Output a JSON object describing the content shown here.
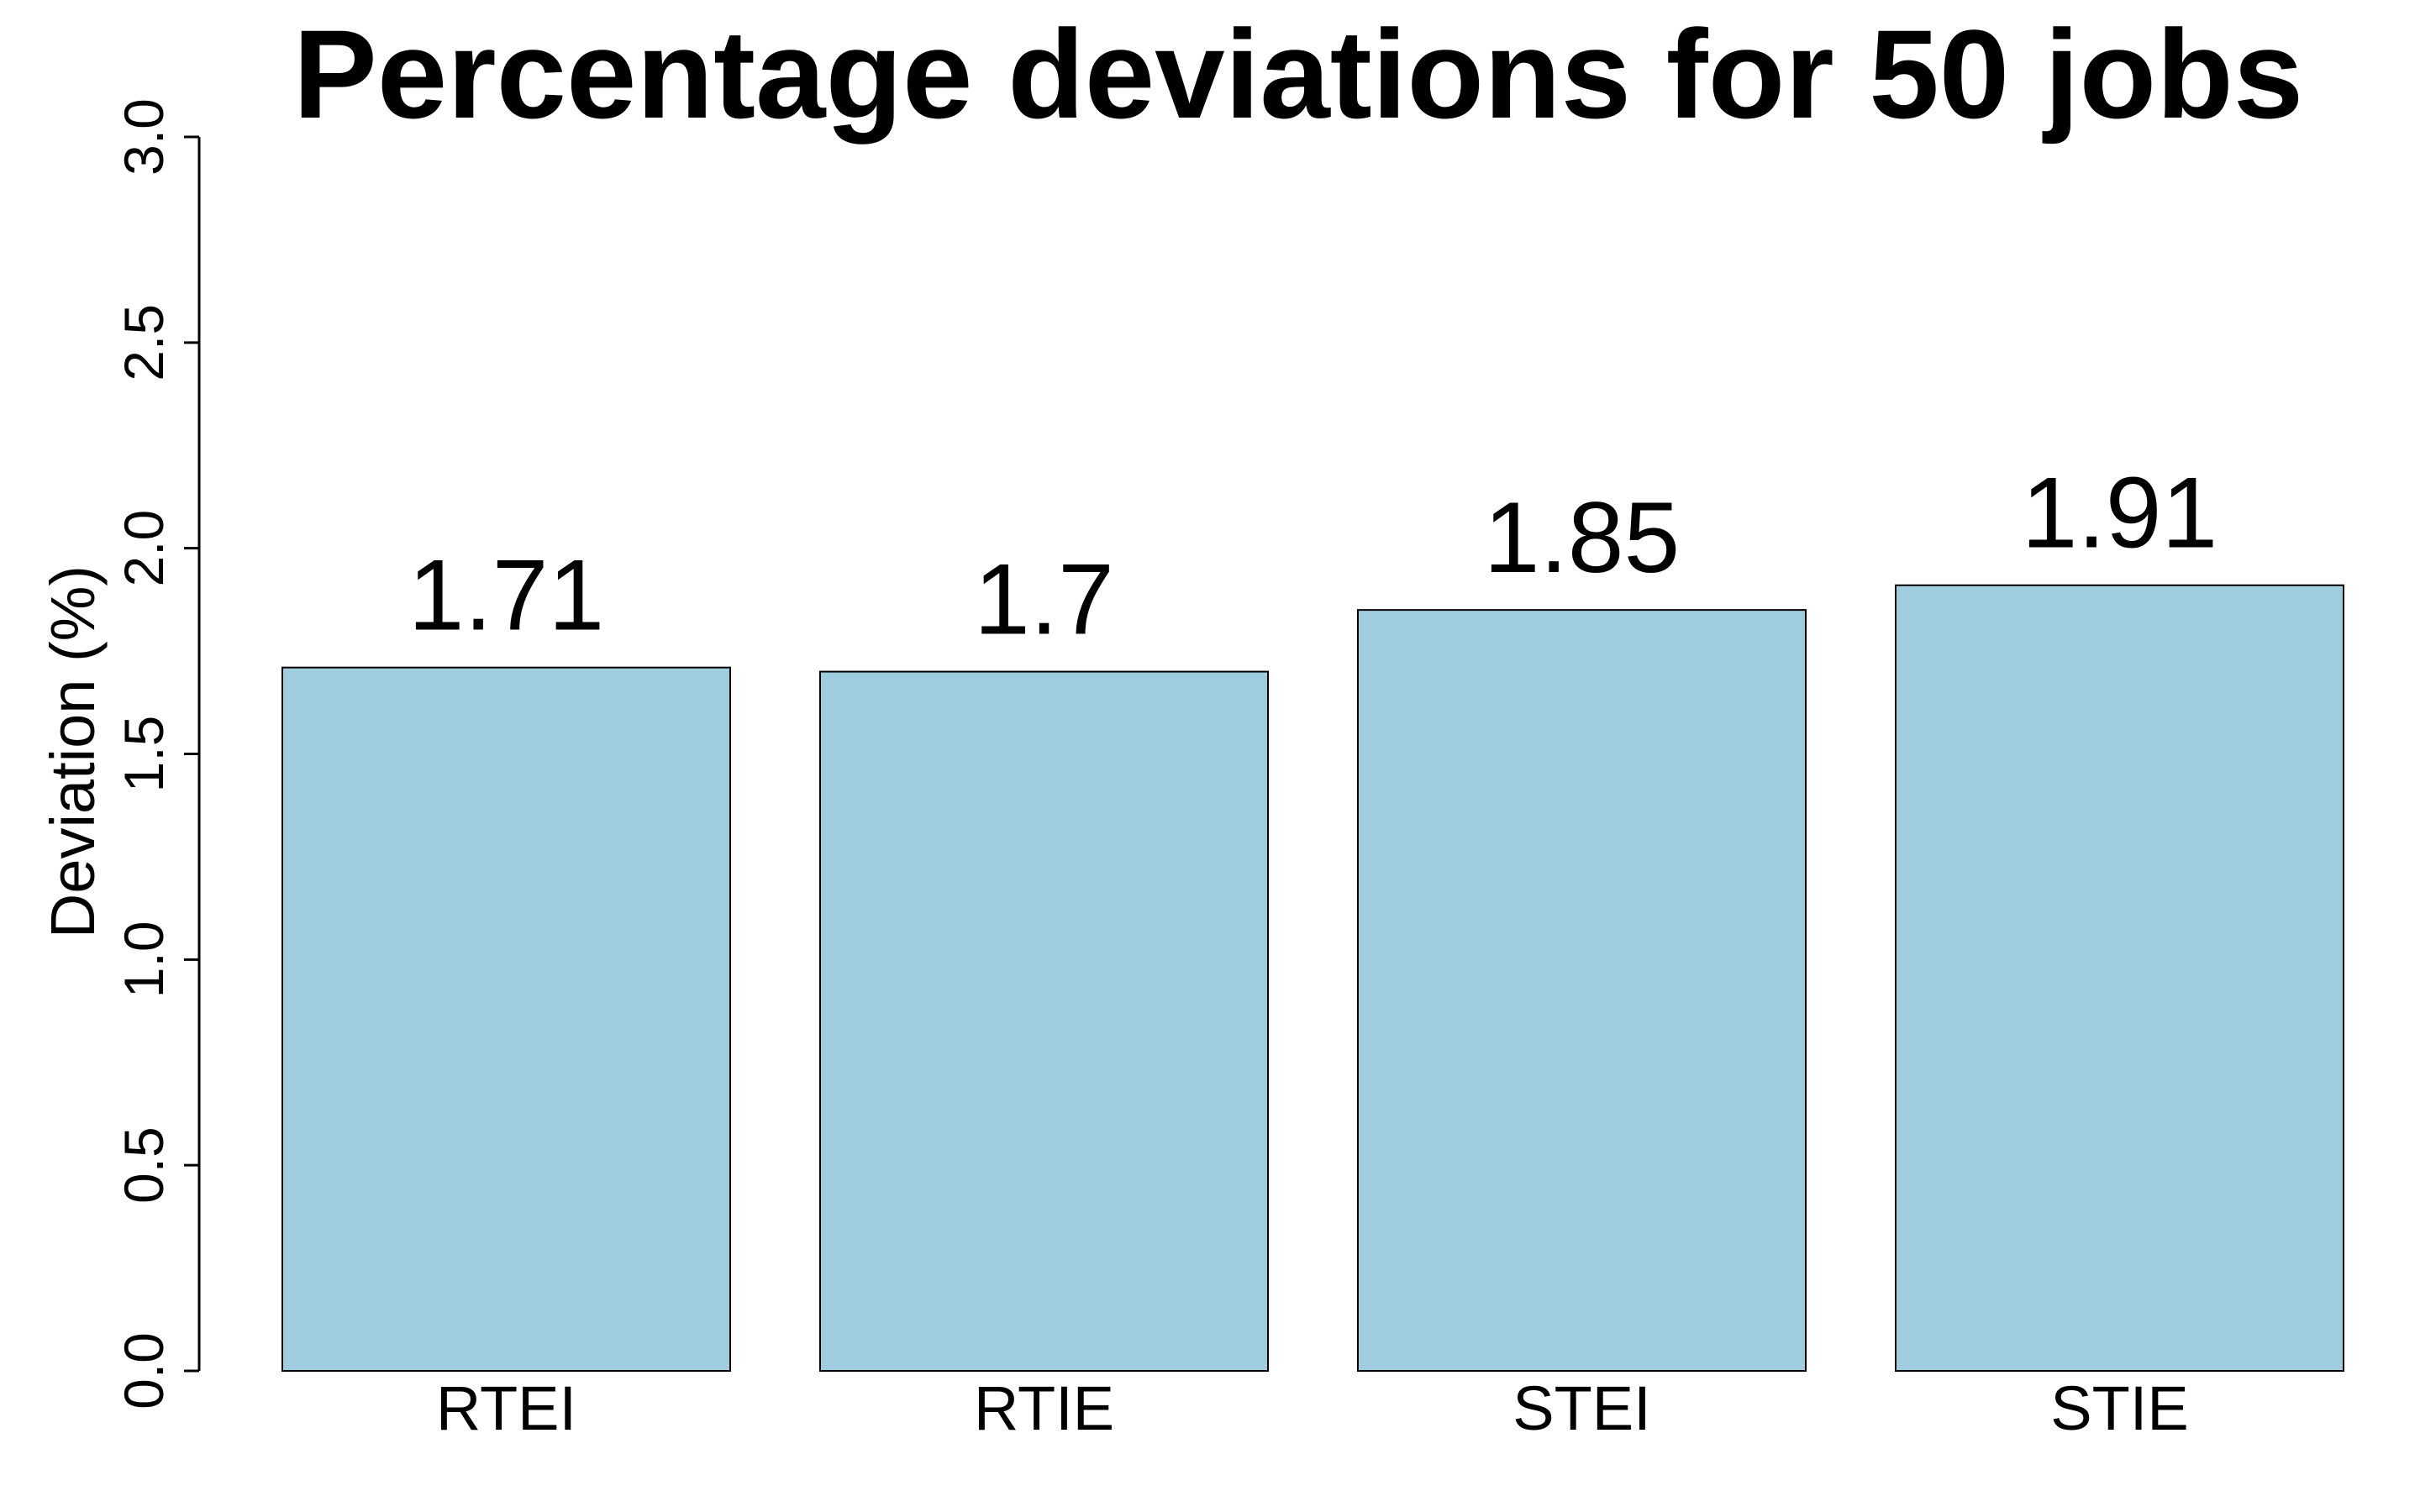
{
  "chart_data": {
    "type": "bar",
    "title": "Percentage deviations for 50 jobs",
    "xlabel": "",
    "ylabel": "Deviation (%)",
    "categories": [
      "RTEI",
      "RTIE",
      "STEI",
      "STIE"
    ],
    "values": [
      1.71,
      1.7,
      1.85,
      1.91
    ],
    "data_labels": [
      "1.71",
      "1.7",
      "1.85",
      "1.91"
    ],
    "ylim": [
      0,
      3
    ],
    "yticks": [
      "0.0",
      "0.5",
      "1.0",
      "1.5",
      "2.0",
      "2.5",
      "3.0"
    ],
    "grid": false,
    "legend": "none",
    "bar_color": "#9ecde0",
    "bar_edge_color": "#000000"
  }
}
